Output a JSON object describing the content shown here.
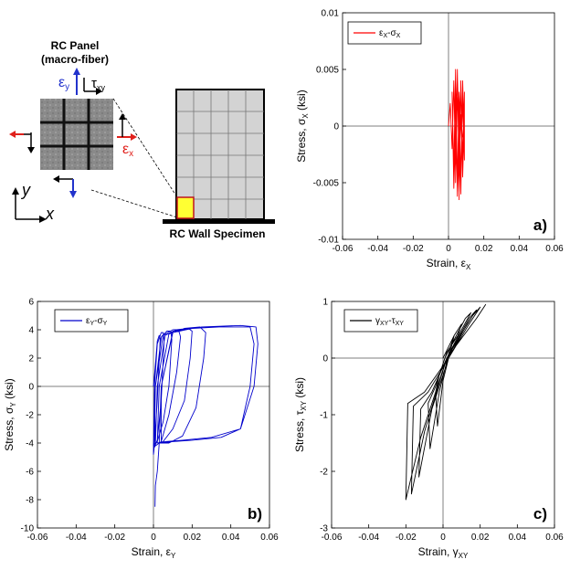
{
  "schematic": {
    "panel_title_line1": "RC Panel",
    "panel_title_line2": "(macro-fiber)",
    "eps_y": "ε",
    "eps_y_sub": "y",
    "tau": "τ",
    "tau_sub": "xy",
    "eps_x": "ε",
    "eps_x_sub": "x",
    "axis_y": "y",
    "axis_x": "x",
    "wall_label": "RC Wall Specimen",
    "colors": {
      "red": "#e0201b",
      "blue": "#2233cc",
      "panel": "#8a8a8a",
      "wall": "#d3d3d3",
      "highlight": "#ffff33",
      "highlight_border": "#c0141c"
    }
  },
  "chart_data": [
    {
      "id": "a",
      "type": "line",
      "panel_label": "a)",
      "xlabel": "Strain, ε",
      "xlabel_sub": "X",
      "ylabel": "Stress, σ",
      "ylabel_sub": "X",
      "yunit": " (ksi)",
      "legend": {
        "a": "ε",
        "a_sub": "X",
        "sep": "-",
        "b": "σ",
        "b_sub": "X"
      },
      "color": "#ff0000",
      "xlim": [
        -0.06,
        0.06
      ],
      "ylim": [
        -0.01,
        0.01
      ],
      "xticks": [
        -0.06,
        -0.04,
        -0.02,
        0,
        0.02,
        0.04,
        0.06
      ],
      "xtick_labels": [
        "-0.06",
        "-0.04",
        "-0.02",
        "0",
        "0.02",
        "0.04",
        "0.06"
      ],
      "yticks": [
        -0.01,
        -0.005,
        0,
        0.005,
        0.01
      ],
      "ytick_labels": [
        "-0.01",
        "-0.005",
        "0",
        "0.005",
        "0.01"
      ],
      "x": [
        0,
        0.001,
        0.002,
        0.003,
        0.004,
        0.005,
        0.006,
        0.007,
        0.008,
        0.009,
        0.009,
        0.008,
        0.007,
        0.006,
        0.005,
        0.004,
        0.003,
        0.002,
        0.003,
        0.005,
        0.007,
        0.008,
        0.009,
        0.009,
        0.008,
        0.007,
        0.006,
        0.006,
        0.005,
        0.004,
        0.004,
        0.005,
        0.007,
        0.008,
        0.009,
        0.009,
        0.008,
        0.006,
        0.005,
        0.004,
        0.005,
        0.007,
        0.008
      ],
      "y": [
        0,
        0.002,
        -0.002,
        0.004,
        -0.004,
        0.005,
        -0.005,
        0.004,
        -0.003,
        0.003,
        -0.002,
        0.004,
        -0.005,
        0.003,
        -0.006,
        0.005,
        -0.004,
        0.003,
        -0.0055,
        0.0045,
        -0.006,
        0.0035,
        -0.003,
        0.001,
        -0.0045,
        0.004,
        -0.0065,
        0.002,
        -0.0062,
        0.003,
        -0.005,
        0.0025,
        -0.004,
        0.002,
        -0.002,
        0.001,
        -0.003,
        0.003,
        -0.005,
        0.0045,
        -0.006,
        0.001,
        -0.001
      ]
    },
    {
      "id": "b",
      "type": "line",
      "panel_label": "b)",
      "xlabel": "Strain, ε",
      "xlabel_sub": "Y",
      "ylabel": "Stress, σ",
      "ylabel_sub": "Y",
      "yunit": " (ksi)",
      "legend": {
        "a": "ε",
        "a_sub": "Y",
        "sep": "-",
        "b": "σ",
        "b_sub": "Y"
      },
      "color": "#0000cc",
      "xlim": [
        -0.06,
        0.06
      ],
      "ylim": [
        -10,
        6
      ],
      "xticks": [
        -0.06,
        -0.04,
        -0.02,
        0,
        0.02,
        0.04,
        0.06
      ],
      "xtick_labels": [
        "-0.06",
        "-0.04",
        "-0.02",
        "0",
        "0.02",
        "0.04",
        "0.06"
      ],
      "yticks": [
        -10,
        -8,
        -6,
        -4,
        -2,
        0,
        2,
        4,
        6
      ],
      "ytick_labels": [
        "-10",
        "-8",
        "-6",
        "-4",
        "-2",
        "0",
        "2",
        "4",
        "6"
      ],
      "x": [
        0,
        0.001,
        0.002,
        0.003,
        0.0035,
        0.002,
        0.0008,
        0.0002,
        0,
        0.0005,
        0.002,
        0.004,
        0.005,
        0.0055,
        0.004,
        0.002,
        0.0005,
        0,
        0.001,
        0.004,
        0.007,
        0.009,
        0.0095,
        0.008,
        0.005,
        0.002,
        0.0005,
        0.001,
        0.005,
        0.01,
        0.013,
        0.014,
        0.012,
        0.008,
        0.004,
        0.001,
        0.002,
        0.006,
        0.012,
        0.018,
        0.02,
        0.019,
        0.016,
        0.01,
        0.005,
        0.002,
        0.003,
        0.008,
        0.016,
        0.024,
        0.027,
        0.026,
        0.022,
        0.015,
        0.008,
        0.003,
        0.004,
        0.01,
        0.02,
        0.034,
        0.05,
        0.052,
        0.05,
        0.045,
        0.035,
        0.02,
        0.01,
        0.004,
        0.004,
        0.01,
        0.025,
        0.045,
        0.053,
        0.054,
        0.052,
        0.045,
        0.03,
        0.015,
        0.006,
        0.003,
        0.002,
        0.001,
        0.0008
      ],
      "y": [
        0,
        1.5,
        3.2,
        3.6,
        3.4,
        -1,
        -3.5,
        -4.6,
        -4.8,
        0,
        3,
        3.8,
        3.8,
        3.2,
        -1,
        -3.8,
        -4.3,
        -4.2,
        0,
        3.5,
        3.9,
        3.9,
        3.3,
        0,
        -2.5,
        -3.9,
        -4.1,
        0,
        3.6,
        4,
        4,
        3.5,
        1,
        -2,
        -3.9,
        -4.2,
        0,
        3.6,
        4,
        4.1,
        3.9,
        2,
        -1,
        -3,
        -3.9,
        -4,
        0,
        3.7,
        4.1,
        4.2,
        3.8,
        2,
        -1.5,
        -3.5,
        -4,
        -4,
        0,
        3.8,
        4.1,
        4.2,
        4.2,
        3,
        0,
        -3,
        -3.6,
        -3.8,
        -3.9,
        -4,
        0,
        3.9,
        4.2,
        4.3,
        4.2,
        3,
        0,
        -3,
        -3.6,
        -3.8,
        -3.9,
        -4,
        -6,
        -7,
        -8.5
      ]
    },
    {
      "id": "c",
      "type": "line",
      "panel_label": "c)",
      "xlabel": "Strain, γ",
      "xlabel_sub": "XY",
      "ylabel": "Stress, τ",
      "ylabel_sub": "XY",
      "yunit": " (ksi)",
      "legend": {
        "a": "γ",
        "a_sub": "XY",
        "sep": "-",
        "b": "τ",
        "b_sub": "XY"
      },
      "color": "#000000",
      "xlim": [
        -0.06,
        0.06
      ],
      "ylim": [
        -3,
        1
      ],
      "xticks": [
        -0.06,
        -0.04,
        -0.02,
        0,
        0.02,
        0.04,
        0.06
      ],
      "xtick_labels": [
        "-0.06",
        "-0.04",
        "-0.02",
        "0",
        "0.02",
        "0.04",
        "0.06"
      ],
      "yticks": [
        -3,
        -2,
        -1,
        0,
        1
      ],
      "ytick_labels": [
        "-3",
        "-2",
        "-1",
        "0",
        "1"
      ],
      "x": [
        0,
        0.003,
        0.006,
        0.004,
        0.001,
        -0.002,
        -0.004,
        -0.003,
        0,
        0.006,
        0.01,
        0.008,
        0.002,
        -0.004,
        -0.008,
        -0.007,
        -0.002,
        0.004,
        0.012,
        0.015,
        0.01,
        0.002,
        -0.006,
        -0.012,
        -0.013,
        -0.006,
        0.004,
        0.014,
        0.018,
        0.013,
        0.003,
        -0.008,
        -0.016,
        -0.017,
        -0.01,
        0.002,
        0.016,
        0.02,
        0.014,
        0.003,
        -0.01,
        -0.019,
        -0.02,
        -0.012,
        0.002,
        0.018,
        0.023
      ],
      "y": [
        0,
        0.2,
        0.4,
        0.2,
        0,
        -0.3,
        -0.6,
        -1.2,
        -0.4,
        0.4,
        0.6,
        0.4,
        0.1,
        -0.5,
        -0.8,
        -1.6,
        -0.6,
        0.2,
        0.7,
        0.8,
        0.5,
        0,
        -0.6,
        -0.9,
        -2.1,
        -0.9,
        0.1,
        0.7,
        0.85,
        0.6,
        0,
        -0.6,
        -0.85,
        -2.4,
        -1.3,
        0,
        0.75,
        0.9,
        0.6,
        0,
        -0.6,
        -0.8,
        -2.5,
        -1.4,
        0,
        0.7,
        0.95
      ]
    }
  ]
}
